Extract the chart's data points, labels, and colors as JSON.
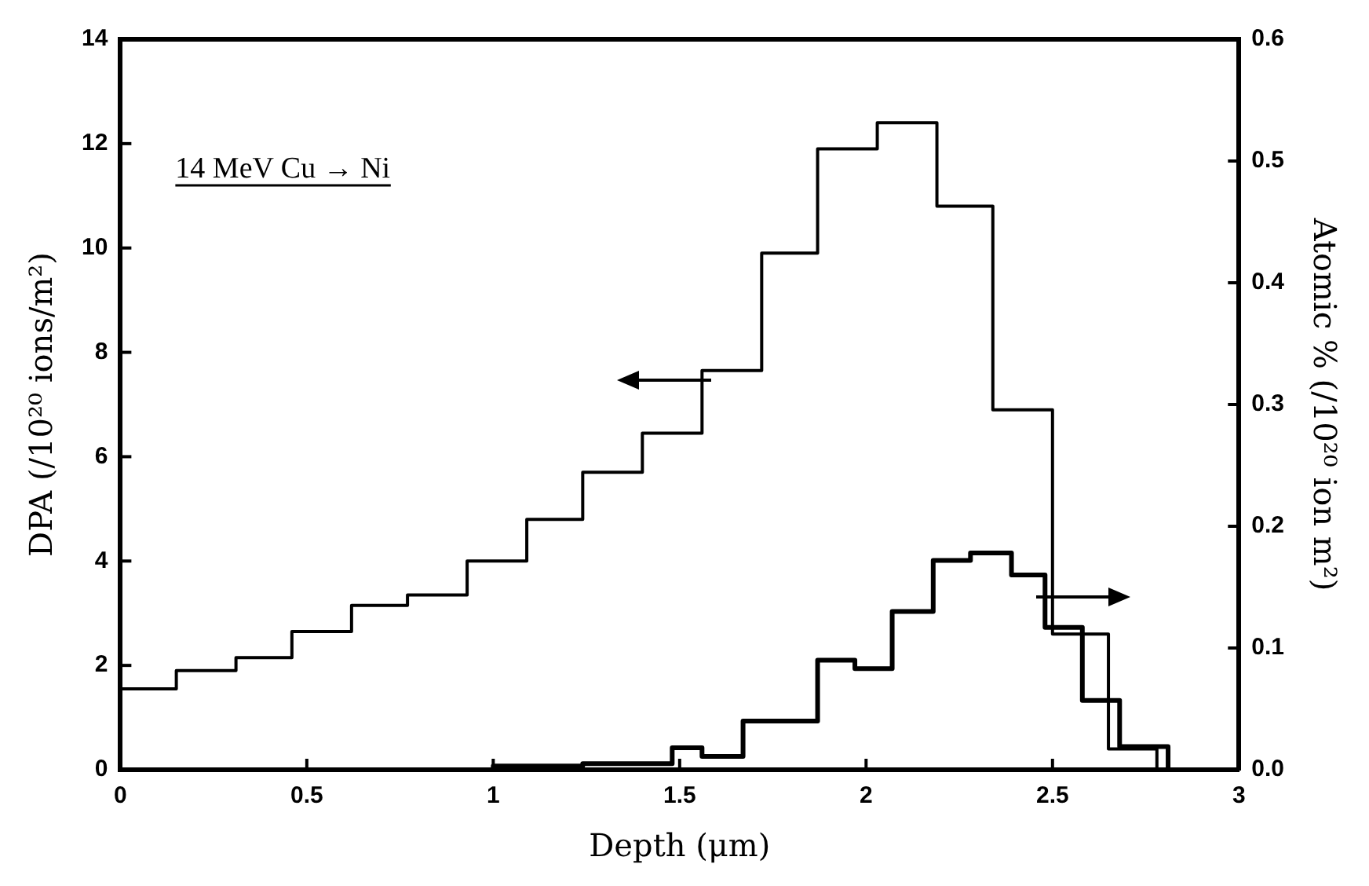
{
  "chart_data": {
    "type": "step",
    "xlabel": "Depth (μm)",
    "ylabel": "DPA (/10²⁰ ions/m²)",
    "y2label": "Atomic % (/10²⁰ ion m²)",
    "annotations": [
      "14 MeV Cu → Ni"
    ],
    "series": [
      {
        "color": "#000000",
        "x": [
          0,
          0.15,
          0.31,
          0.46,
          0.62,
          0.77,
          0.93,
          1.09,
          1.24,
          1.4,
          1.56,
          1.72,
          1.87,
          2.03,
          2.19,
          2.34,
          2.5,
          2.65,
          2.78
        ],
        "values": [
          1.55,
          1.9,
          2.15,
          2.65,
          3.15,
          3.35,
          4.0,
          4.8,
          5.7,
          6.45,
          7.65,
          9.9,
          11.9,
          12.4,
          10.8,
          6.9,
          2.6,
          0.4,
          0
        ]
      },
      {
        "color": "#000000",
        "axis": "y2",
        "x": [
          0,
          1.0,
          1.24,
          1.48,
          1.56,
          1.67,
          1.87,
          1.97,
          2.07,
          2.18,
          2.28,
          2.39,
          2.48,
          2.58,
          2.68,
          2.81
        ],
        "values": [
          0,
          0.003,
          0.005,
          0.018,
          0.011,
          0.04,
          0.09,
          0.083,
          0.13,
          0.172,
          0.178,
          0.16,
          0.117,
          0.057,
          0.019,
          0
        ]
      }
    ],
    "xlim": [
      0,
      3
    ],
    "xticks": [
      0,
      0.5,
      1,
      1.5,
      2,
      2.5,
      3
    ],
    "ylim": [
      0,
      14
    ],
    "yticks": [
      0,
      2,
      4,
      6,
      8,
      10,
      12,
      14
    ],
    "y2lim": [
      0,
      0.6
    ],
    "y2ticks": [
      {
        "value": 0,
        "label": "0.0"
      },
      0.1,
      0.2,
      0.3,
      0.4,
      0.5,
      0.6
    ],
    "grid": false,
    "legend": false
  }
}
